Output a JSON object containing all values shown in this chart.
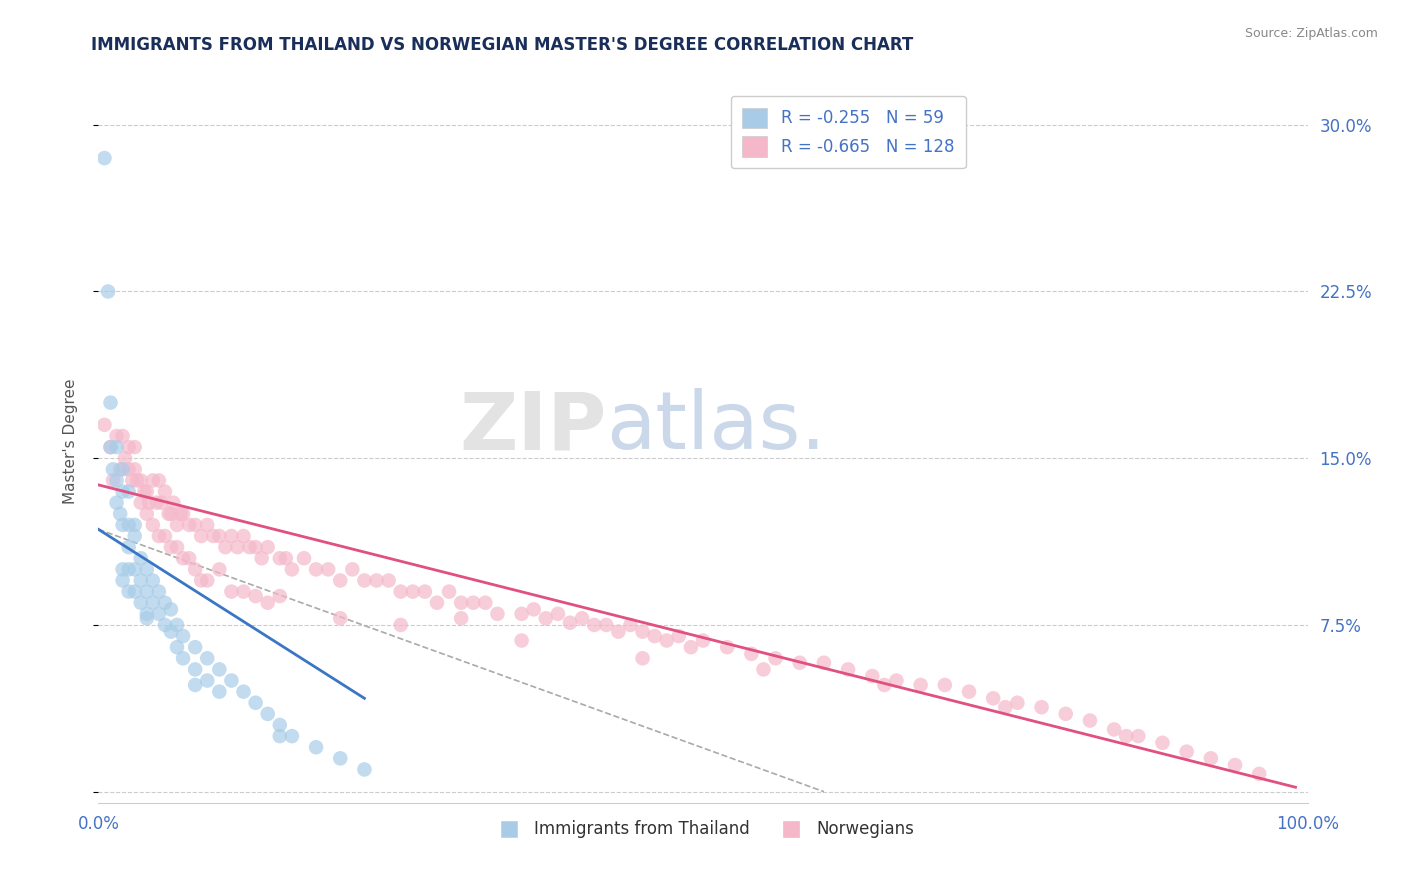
{
  "title": "IMMIGRANTS FROM THAILAND VS NORWEGIAN MASTER'S DEGREE CORRELATION CHART",
  "source": "Source: ZipAtlas.com",
  "ylabel": "Master's Degree",
  "xlim": [
    0.0,
    1.0
  ],
  "ylim": [
    -0.005,
    0.32
  ],
  "legend_blue_r": "-0.255",
  "legend_blue_n": "59",
  "legend_pink_r": "-0.665",
  "legend_pink_n": "128",
  "blue_color": "#a8cce8",
  "pink_color": "#f5b8cb",
  "blue_line_color": "#3a76c4",
  "pink_line_color": "#e05080",
  "dashed_line_color": "#aaaaaa",
  "grid_color": "#cccccc",
  "title_color": "#1a2e5a",
  "axis_label_color": "#555555",
  "tick_label_color": "#4472c4",
  "watermark_zip": "ZIP",
  "watermark_atlas": "atlas.",
  "watermark_zip_color": "#cccccc",
  "watermark_atlas_color": "#a0b8d8",
  "blue_scatter_x": [
    0.005,
    0.008,
    0.01,
    0.01,
    0.012,
    0.015,
    0.015,
    0.015,
    0.018,
    0.02,
    0.02,
    0.02,
    0.02,
    0.025,
    0.025,
    0.025,
    0.025,
    0.025,
    0.03,
    0.03,
    0.03,
    0.03,
    0.035,
    0.035,
    0.035,
    0.04,
    0.04,
    0.04,
    0.045,
    0.045,
    0.05,
    0.05,
    0.055,
    0.055,
    0.06,
    0.06,
    0.065,
    0.065,
    0.07,
    0.07,
    0.08,
    0.08,
    0.09,
    0.09,
    0.1,
    0.1,
    0.11,
    0.12,
    0.13,
    0.14,
    0.15,
    0.16,
    0.18,
    0.2,
    0.22,
    0.15,
    0.08,
    0.04,
    0.02
  ],
  "blue_scatter_y": [
    0.285,
    0.225,
    0.175,
    0.155,
    0.145,
    0.155,
    0.14,
    0.13,
    0.125,
    0.145,
    0.135,
    0.12,
    0.1,
    0.135,
    0.12,
    0.11,
    0.1,
    0.09,
    0.12,
    0.115,
    0.1,
    0.09,
    0.105,
    0.095,
    0.085,
    0.1,
    0.09,
    0.08,
    0.095,
    0.085,
    0.09,
    0.08,
    0.085,
    0.075,
    0.082,
    0.072,
    0.075,
    0.065,
    0.07,
    0.06,
    0.065,
    0.055,
    0.06,
    0.05,
    0.055,
    0.045,
    0.05,
    0.045,
    0.04,
    0.035,
    0.03,
    0.025,
    0.02,
    0.015,
    0.01,
    0.025,
    0.048,
    0.078,
    0.095
  ],
  "pink_scatter_x": [
    0.005,
    0.01,
    0.012,
    0.015,
    0.018,
    0.02,
    0.022,
    0.025,
    0.028,
    0.03,
    0.032,
    0.035,
    0.038,
    0.04,
    0.042,
    0.045,
    0.048,
    0.05,
    0.052,
    0.055,
    0.058,
    0.06,
    0.062,
    0.065,
    0.068,
    0.07,
    0.075,
    0.08,
    0.085,
    0.09,
    0.095,
    0.1,
    0.105,
    0.11,
    0.115,
    0.12,
    0.125,
    0.13,
    0.135,
    0.14,
    0.15,
    0.155,
    0.16,
    0.17,
    0.18,
    0.19,
    0.2,
    0.21,
    0.22,
    0.23,
    0.24,
    0.25,
    0.26,
    0.27,
    0.28,
    0.29,
    0.3,
    0.31,
    0.32,
    0.33,
    0.35,
    0.36,
    0.37,
    0.38,
    0.39,
    0.4,
    0.41,
    0.42,
    0.43,
    0.44,
    0.45,
    0.46,
    0.47,
    0.48,
    0.49,
    0.5,
    0.52,
    0.54,
    0.56,
    0.58,
    0.6,
    0.62,
    0.64,
    0.66,
    0.68,
    0.7,
    0.72,
    0.74,
    0.76,
    0.78,
    0.8,
    0.82,
    0.84,
    0.86,
    0.88,
    0.9,
    0.92,
    0.94,
    0.96,
    0.025,
    0.03,
    0.035,
    0.04,
    0.045,
    0.05,
    0.055,
    0.06,
    0.065,
    0.07,
    0.075,
    0.08,
    0.085,
    0.09,
    0.1,
    0.11,
    0.12,
    0.13,
    0.14,
    0.15,
    0.2,
    0.25,
    0.3,
    0.35,
    0.45,
    0.55,
    0.65,
    0.75,
    0.85
  ],
  "pink_scatter_y": [
    0.165,
    0.155,
    0.14,
    0.16,
    0.145,
    0.16,
    0.15,
    0.145,
    0.14,
    0.155,
    0.14,
    0.14,
    0.135,
    0.135,
    0.13,
    0.14,
    0.13,
    0.14,
    0.13,
    0.135,
    0.125,
    0.125,
    0.13,
    0.12,
    0.125,
    0.125,
    0.12,
    0.12,
    0.115,
    0.12,
    0.115,
    0.115,
    0.11,
    0.115,
    0.11,
    0.115,
    0.11,
    0.11,
    0.105,
    0.11,
    0.105,
    0.105,
    0.1,
    0.105,
    0.1,
    0.1,
    0.095,
    0.1,
    0.095,
    0.095,
    0.095,
    0.09,
    0.09,
    0.09,
    0.085,
    0.09,
    0.085,
    0.085,
    0.085,
    0.08,
    0.08,
    0.082,
    0.078,
    0.08,
    0.076,
    0.078,
    0.075,
    0.075,
    0.072,
    0.075,
    0.072,
    0.07,
    0.068,
    0.07,
    0.065,
    0.068,
    0.065,
    0.062,
    0.06,
    0.058,
    0.058,
    0.055,
    0.052,
    0.05,
    0.048,
    0.048,
    0.045,
    0.042,
    0.04,
    0.038,
    0.035,
    0.032,
    0.028,
    0.025,
    0.022,
    0.018,
    0.015,
    0.012,
    0.008,
    0.155,
    0.145,
    0.13,
    0.125,
    0.12,
    0.115,
    0.115,
    0.11,
    0.11,
    0.105,
    0.105,
    0.1,
    0.095,
    0.095,
    0.1,
    0.09,
    0.09,
    0.088,
    0.085,
    0.088,
    0.078,
    0.075,
    0.078,
    0.068,
    0.06,
    0.055,
    0.048,
    0.038,
    0.025
  ],
  "blue_line_x": [
    0.0,
    0.22
  ],
  "blue_line_y": [
    0.118,
    0.042
  ],
  "pink_line_x": [
    0.0,
    0.99
  ],
  "pink_line_y": [
    0.138,
    0.002
  ],
  "dash_line_x": [
    0.0,
    0.6
  ],
  "dash_line_y": [
    0.118,
    0.0
  ],
  "y_ticks": [
    0.0,
    0.075,
    0.15,
    0.225,
    0.3
  ],
  "y_tick_labels": [
    "",
    "7.5%",
    "15.0%",
    "22.5%",
    "30.0%"
  ],
  "x_tick_positions": [
    0.0,
    0.1,
    0.2,
    0.3,
    0.4,
    0.5,
    0.6,
    0.7,
    0.8,
    0.9,
    1.0
  ],
  "x_tick_labels": [
    "0.0%",
    "",
    "",
    "",
    "",
    "",
    "",
    "",
    "",
    "",
    "100.0%"
  ]
}
